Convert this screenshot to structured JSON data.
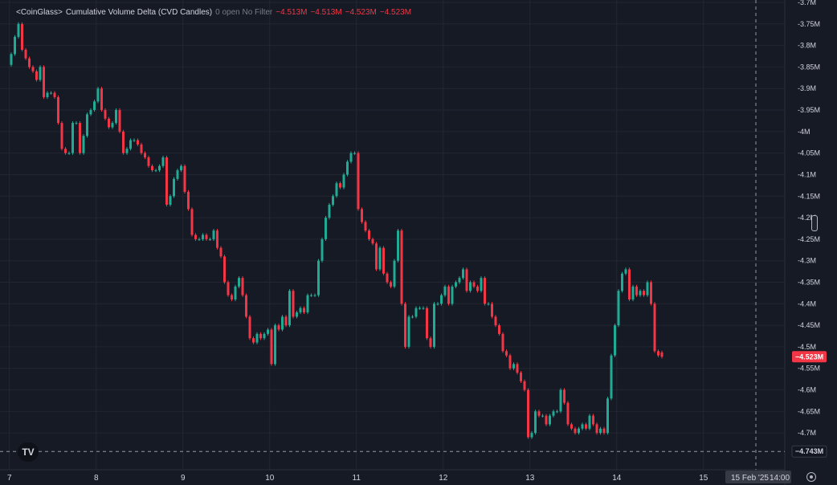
{
  "legend": {
    "symbol": "<CoinGlass>",
    "title": "Cumulative Volume Delta (CVD Candles)",
    "params": "0 open No Filter",
    "values": [
      "−4.513M",
      "−4.513M",
      "−4.523M",
      "−4.523M"
    ]
  },
  "badges": {
    "last_price": "−4.523M",
    "crosshair_price": "−4.743M",
    "crosshair_date": "15 Feb '25",
    "crosshair_time": "14:00"
  },
  "colors": {
    "up": "#22ab94",
    "down": "#f23645",
    "background": "#161a25",
    "grid": "#232632"
  },
  "icons": [
    "tradingview-logo-icon",
    "settings-gear-icon",
    "scale-handle-icon"
  ],
  "chart_data": {
    "type": "candlestick",
    "ylim": [
      -4.765,
      -3.7
    ],
    "yticks": [
      {
        "v": -3.7,
        "label": "-3.7M"
      },
      {
        "v": -3.75,
        "label": "-3.75M"
      },
      {
        "v": -3.8,
        "label": "-3.8M"
      },
      {
        "v": -3.85,
        "label": "-3.85M"
      },
      {
        "v": -3.9,
        "label": "-3.9M"
      },
      {
        "v": -3.95,
        "label": "-3.95M"
      },
      {
        "v": -4.0,
        "label": "-4M"
      },
      {
        "v": -4.05,
        "label": "-4.05M"
      },
      {
        "v": -4.1,
        "label": "-4.1M"
      },
      {
        "v": -4.15,
        "label": "-4.15M"
      },
      {
        "v": -4.2,
        "label": "-4.2M"
      },
      {
        "v": -4.25,
        "label": "-4.25M"
      },
      {
        "v": -4.3,
        "label": "-4.3M"
      },
      {
        "v": -4.35,
        "label": "-4.35M"
      },
      {
        "v": -4.4,
        "label": "-4.4M"
      },
      {
        "v": -4.45,
        "label": "-4.45M"
      },
      {
        "v": -4.5,
        "label": "-4.5M"
      },
      {
        "v": -4.55,
        "label": "-4.55M"
      },
      {
        "v": -4.6,
        "label": "-4.6M"
      },
      {
        "v": -4.65,
        "label": "-4.65M"
      },
      {
        "v": -4.7,
        "label": "-4.7M"
      }
    ],
    "xticks": [
      {
        "label": "7",
        "bar": -0.5
      },
      {
        "label": "8",
        "bar": 23.5
      },
      {
        "label": "9",
        "bar": 47.5
      },
      {
        "label": "10",
        "bar": 71.5
      },
      {
        "label": "11",
        "bar": 95.5
      },
      {
        "label": "12",
        "bar": 119.5
      },
      {
        "label": "13",
        "bar": 143.5
      },
      {
        "label": "14",
        "bar": 167.5
      },
      {
        "label": "15",
        "bar": 191.5
      }
    ],
    "last_value": -4.523,
    "crosshair_value": -4.743,
    "crosshair_bar": 206,
    "closes": [
      -3.82,
      -3.78,
      -3.75,
      -3.81,
      -3.83,
      -3.85,
      -3.86,
      -3.88,
      -3.85,
      -3.92,
      -3.91,
      -3.91,
      -3.92,
      -3.98,
      -4.04,
      -4.05,
      -4.05,
      -3.98,
      -3.98,
      -4.05,
      -4.01,
      -3.96,
      -3.95,
      -3.93,
      -3.9,
      -3.95,
      -3.97,
      -3.99,
      -3.98,
      -3.95,
      -4.0,
      -4.05,
      -4.04,
      -4.02,
      -4.02,
      -4.03,
      -4.05,
      -4.06,
      -4.08,
      -4.09,
      -4.09,
      -4.08,
      -4.06,
      -4.17,
      -4.15,
      -4.11,
      -4.09,
      -4.08,
      -4.14,
      -4.18,
      -4.24,
      -4.25,
      -4.25,
      -4.24,
      -4.25,
      -4.25,
      -4.23,
      -4.27,
      -4.29,
      -4.35,
      -4.38,
      -4.39,
      -4.36,
      -4.34,
      -4.38,
      -4.43,
      -4.48,
      -4.49,
      -4.47,
      -4.48,
      -4.47,
      -4.46,
      -4.54,
      -4.45,
      -4.46,
      -4.43,
      -4.45,
      -4.37,
      -4.43,
      -4.42,
      -4.41,
      -4.42,
      -4.38,
      -4.38,
      -4.38,
      -4.3,
      -4.25,
      -4.2,
      -4.17,
      -4.15,
      -4.12,
      -4.13,
      -4.1,
      -4.07,
      -4.05,
      -4.05,
      -4.18,
      -4.21,
      -4.23,
      -4.25,
      -4.26,
      -4.32,
      -4.27,
      -4.33,
      -4.35,
      -4.36,
      -4.3,
      -4.23,
      -4.4,
      -4.5,
      -4.43,
      -4.43,
      -4.41,
      -4.41,
      -4.41,
      -4.48,
      -4.5,
      -4.4,
      -4.4,
      -4.38,
      -4.36,
      -4.4,
      -4.36,
      -4.35,
      -4.34,
      -4.32,
      -4.37,
      -4.35,
      -4.36,
      -4.37,
      -4.34,
      -4.4,
      -4.4,
      -4.43,
      -4.45,
      -4.47,
      -4.51,
      -4.52,
      -4.55,
      -4.54,
      -4.56,
      -4.58,
      -4.6,
      -4.71,
      -4.7,
      -4.65,
      -4.66,
      -4.66,
      -4.68,
      -4.66,
      -4.65,
      -4.65,
      -4.6,
      -4.63,
      -4.68,
      -4.69,
      -4.7,
      -4.69,
      -4.68,
      -4.69,
      -4.66,
      -4.68,
      -4.7,
      -4.69,
      -4.7,
      -4.62,
      -4.52,
      -4.45,
      -4.37,
      -4.33,
      -4.32,
      -4.39,
      -4.36,
      -4.38,
      -4.37,
      -4.38,
      -4.35,
      -4.4,
      -4.51,
      -4.52,
      -4.523
    ],
    "last_open": -4.513
  }
}
